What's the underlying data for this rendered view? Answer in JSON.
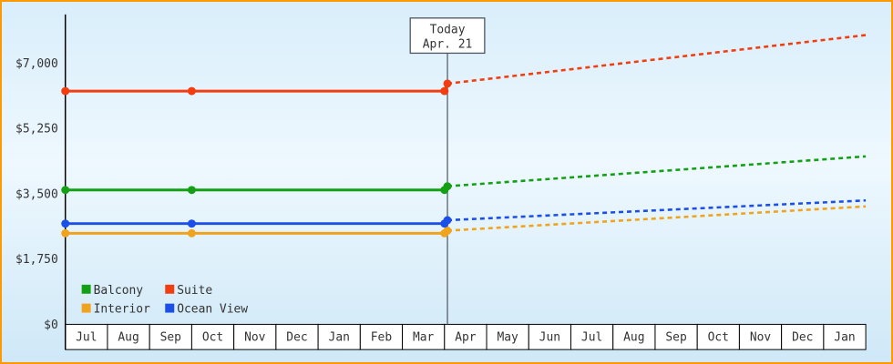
{
  "chart_data": {
    "type": "line",
    "today_marker": {
      "line1": "Today",
      "line2": "Apr. 21"
    },
    "x_axis": {
      "labels": [
        "Jul",
        "Aug",
        "Sep",
        "Oct",
        "Nov",
        "Dec",
        "Jan",
        "Feb",
        "Mar",
        "Apr",
        "May",
        "Jun",
        "Jul",
        "Aug",
        "Sep",
        "Oct",
        "Nov",
        "Dec",
        "Jan"
      ]
    },
    "y_axis": {
      "ticks": [
        {
          "value": 0,
          "label": "$0"
        },
        {
          "value": 1750,
          "label": "$1,750"
        },
        {
          "value": 3500,
          "label": "$3,500"
        },
        {
          "value": 5250,
          "label": "$5,250"
        },
        {
          "value": 7000,
          "label": "$7,000"
        }
      ],
      "max_plotted_value": 8300
    },
    "today_position": 9.07,
    "series": [
      {
        "name": "Balcony",
        "color": "#14a014",
        "history": [
          [
            0,
            3600
          ],
          [
            3,
            3600
          ],
          [
            9,
            3600
          ]
        ],
        "today_value": [
          9.07,
          3700
        ],
        "forecast": [
          [
            9.07,
            3700
          ],
          [
            19,
            4500
          ]
        ],
        "markers": [
          [
            0,
            3600
          ],
          [
            3,
            3600
          ],
          [
            9,
            3600
          ],
          [
            9.07,
            3700
          ]
        ]
      },
      {
        "name": "Suite",
        "color": "#f23d10",
        "history": [
          [
            0,
            6250
          ],
          [
            3,
            6250
          ],
          [
            9,
            6250
          ]
        ],
        "today_value": [
          9.07,
          6450
        ],
        "forecast": [
          [
            9.07,
            6450
          ],
          [
            19,
            7750
          ]
        ],
        "markers": [
          [
            0,
            6250
          ],
          [
            3,
            6250
          ],
          [
            9,
            6250
          ],
          [
            9.07,
            6450
          ]
        ]
      },
      {
        "name": "Interior",
        "color": "#f0a31c",
        "history": [
          [
            0,
            2440
          ],
          [
            3,
            2440
          ],
          [
            9,
            2440
          ]
        ],
        "today_value": [
          9.07,
          2510
        ],
        "forecast": [
          [
            9.07,
            2510
          ],
          [
            19,
            3160
          ]
        ],
        "markers": [
          [
            0,
            2440
          ],
          [
            3,
            2440
          ],
          [
            9,
            2440
          ],
          [
            9.07,
            2510
          ]
        ]
      },
      {
        "name": "Ocean View",
        "color": "#1b4fe8",
        "history": [
          [
            0,
            2700
          ],
          [
            3,
            2700
          ],
          [
            9,
            2700
          ]
        ],
        "today_value": [
          9.07,
          2790
        ],
        "forecast": [
          [
            9.07,
            2790
          ],
          [
            19,
            3320
          ]
        ],
        "markers": [
          [
            0,
            2700
          ],
          [
            3,
            2700
          ],
          [
            9,
            2700
          ],
          [
            9.07,
            2790
          ]
        ]
      }
    ],
    "legend": {
      "columns": 2
    },
    "colors": {
      "frame_border": "#ff9900",
      "axis": "#000000",
      "text": "#333333",
      "today_line": "#4d5560",
      "month_cell_fill": "#ffffff"
    }
  }
}
